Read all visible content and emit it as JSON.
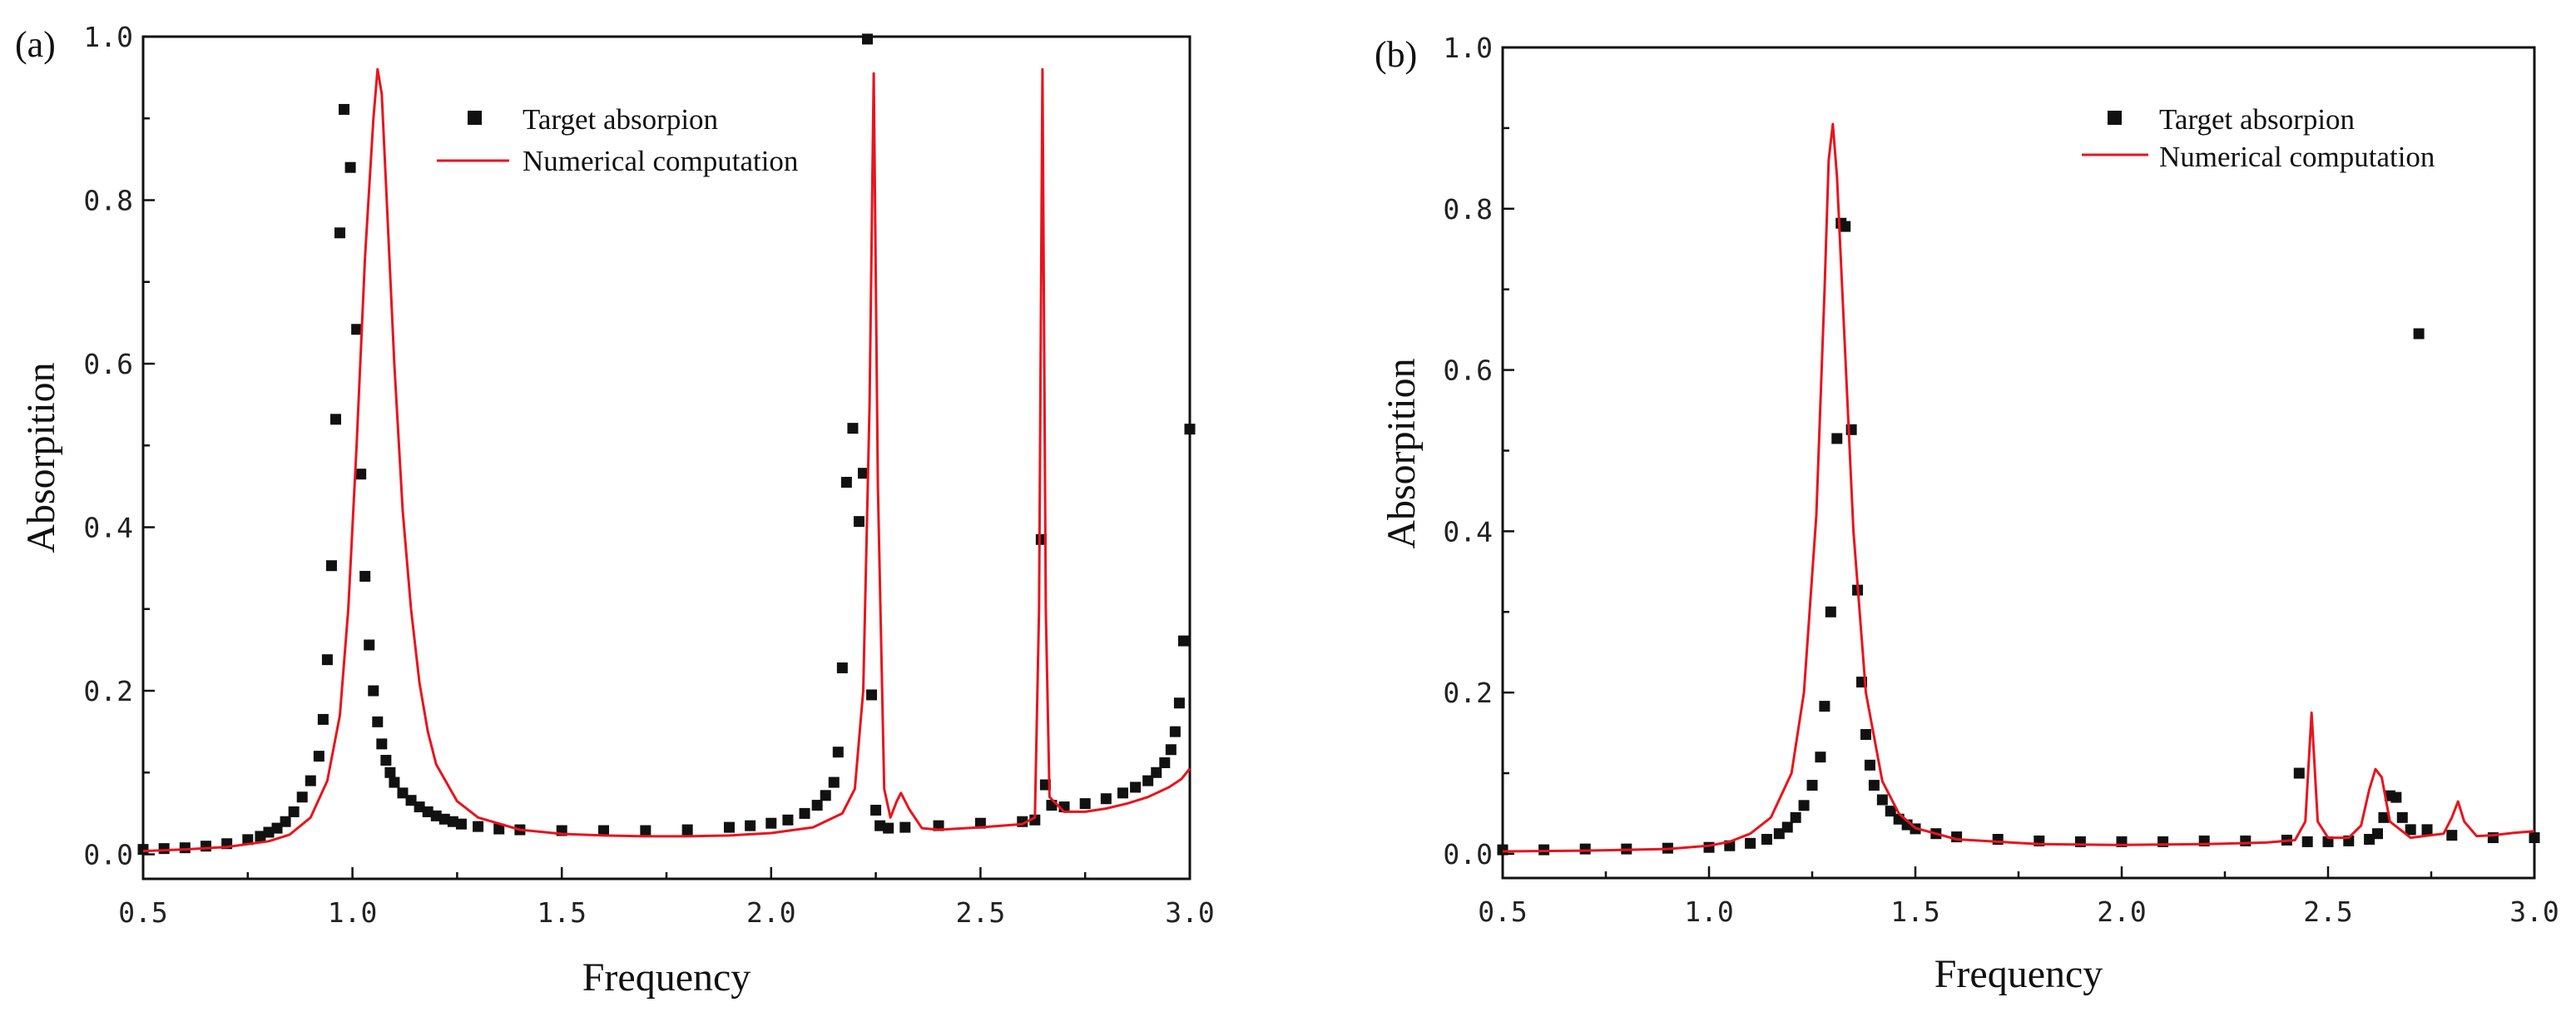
{
  "colors": {
    "target": "#111111",
    "numerical": "#e8141c",
    "axis": "#111111"
  },
  "chart_data": [
    {
      "type": "scatter+line",
      "panel_label": "(a)",
      "xlabel": "Frequency",
      "ylabel": "Absorpition",
      "xlim": [
        0.5,
        3.0
      ],
      "ylim": [
        -0.03,
        1.0
      ],
      "xticks": [
        0.5,
        1.0,
        1.5,
        2.0,
        2.5,
        3.0
      ],
      "xtick_labels": [
        "0.5",
        "1.0",
        "1.5",
        "2.0",
        "2.5",
        "3.0"
      ],
      "yticks": [
        0.0,
        0.2,
        0.4,
        0.6,
        0.8,
        1.0
      ],
      "ytick_labels": [
        "0.0",
        "0.2",
        "0.4",
        "0.6",
        "0.8",
        "1.0"
      ],
      "legend": {
        "position": "top-center",
        "entries": [
          "Target absorpion",
          "Numerical computation"
        ]
      },
      "series": [
        {
          "name": "Target absorpion",
          "style": "markers",
          "points": [
            [
              0.5,
              0.006
            ],
            [
              0.55,
              0.007
            ],
            [
              0.6,
              0.008
            ],
            [
              0.65,
              0.01
            ],
            [
              0.7,
              0.013
            ],
            [
              0.75,
              0.018
            ],
            [
              0.78,
              0.022
            ],
            [
              0.8,
              0.027
            ],
            [
              0.82,
              0.032
            ],
            [
              0.84,
              0.04
            ],
            [
              0.86,
              0.052
            ],
            [
              0.88,
              0.07
            ],
            [
              0.9,
              0.09
            ],
            [
              0.92,
              0.12
            ],
            [
              0.93,
              0.165
            ],
            [
              0.94,
              0.238
            ],
            [
              0.95,
              0.353
            ],
            [
              0.96,
              0.532
            ],
            [
              0.97,
              0.76
            ],
            [
              0.98,
              0.911
            ],
            [
              0.995,
              0.84
            ],
            [
              1.01,
              0.642
            ],
            [
              1.02,
              0.465
            ],
            [
              1.03,
              0.34
            ],
            [
              1.04,
              0.256
            ],
            [
              1.05,
              0.2
            ],
            [
              1.06,
              0.162
            ],
            [
              1.07,
              0.135
            ],
            [
              1.08,
              0.115
            ],
            [
              1.09,
              0.1
            ],
            [
              1.1,
              0.088
            ],
            [
              1.12,
              0.075
            ],
            [
              1.14,
              0.066
            ],
            [
              1.16,
              0.058
            ],
            [
              1.18,
              0.052
            ],
            [
              1.2,
              0.047
            ],
            [
              1.22,
              0.043
            ],
            [
              1.24,
              0.04
            ],
            [
              1.26,
              0.037
            ],
            [
              1.3,
              0.034
            ],
            [
              1.35,
              0.031
            ],
            [
              1.4,
              0.03
            ],
            [
              1.5,
              0.029
            ],
            [
              1.6,
              0.029
            ],
            [
              1.7,
              0.029
            ],
            [
              1.8,
              0.03
            ],
            [
              1.9,
              0.033
            ],
            [
              1.95,
              0.035
            ],
            [
              2.0,
              0.038
            ],
            [
              2.04,
              0.042
            ],
            [
              2.08,
              0.05
            ],
            [
              2.11,
              0.06
            ],
            [
              2.13,
              0.072
            ],
            [
              2.15,
              0.088
            ],
            [
              2.16,
              0.125
            ],
            [
              2.17,
              0.228
            ],
            [
              2.18,
              0.455
            ],
            [
              2.195,
              0.521
            ],
            [
              2.21,
              0.407
            ],
            [
              2.22,
              0.466
            ],
            [
              2.23,
              0.997
            ],
            [
              2.24,
              0.195
            ],
            [
              2.25,
              0.054
            ],
            [
              2.26,
              0.035
            ],
            [
              2.28,
              0.032
            ],
            [
              2.32,
              0.033
            ],
            [
              2.4,
              0.035
            ],
            [
              2.5,
              0.038
            ],
            [
              2.6,
              0.04
            ],
            [
              2.63,
              0.042
            ],
            [
              2.645,
              0.385
            ],
            [
              2.655,
              0.085
            ],
            [
              2.67,
              0.06
            ],
            [
              2.7,
              0.058
            ],
            [
              2.75,
              0.062
            ],
            [
              2.8,
              0.068
            ],
            [
              2.84,
              0.075
            ],
            [
              2.87,
              0.082
            ],
            [
              2.9,
              0.09
            ],
            [
              2.92,
              0.1
            ],
            [
              2.94,
              0.112
            ],
            [
              2.955,
              0.128
            ],
            [
              2.965,
              0.15
            ],
            [
              2.975,
              0.185
            ],
            [
              2.985,
              0.261
            ],
            [
              3.0,
              0.52
            ]
          ]
        },
        {
          "name": "Numerical computation",
          "style": "line",
          "points": [
            [
              0.5,
              0.004
            ],
            [
              0.6,
              0.006
            ],
            [
              0.7,
              0.009
            ],
            [
              0.8,
              0.016
            ],
            [
              0.85,
              0.024
            ],
            [
              0.9,
              0.045
            ],
            [
              0.94,
              0.09
            ],
            [
              0.97,
              0.17
            ],
            [
              0.99,
              0.3
            ],
            [
              1.01,
              0.5
            ],
            [
              1.03,
              0.73
            ],
            [
              1.05,
              0.9
            ],
            [
              1.06,
              0.96
            ],
            [
              1.07,
              0.93
            ],
            [
              1.08,
              0.82
            ],
            [
              1.1,
              0.6
            ],
            [
              1.12,
              0.42
            ],
            [
              1.14,
              0.3
            ],
            [
              1.16,
              0.21
            ],
            [
              1.18,
              0.15
            ],
            [
              1.2,
              0.11
            ],
            [
              1.25,
              0.065
            ],
            [
              1.3,
              0.045
            ],
            [
              1.4,
              0.03
            ],
            [
              1.5,
              0.025
            ],
            [
              1.6,
              0.023
            ],
            [
              1.7,
              0.022
            ],
            [
              1.8,
              0.022
            ],
            [
              1.9,
              0.023
            ],
            [
              2.0,
              0.026
            ],
            [
              2.1,
              0.033
            ],
            [
              2.17,
              0.05
            ],
            [
              2.2,
              0.08
            ],
            [
              2.22,
              0.2
            ],
            [
              2.235,
              0.55
            ],
            [
              2.245,
              0.955
            ],
            [
              2.255,
              0.45
            ],
            [
              2.27,
              0.08
            ],
            [
              2.285,
              0.045
            ],
            [
              2.3,
              0.065
            ],
            [
              2.31,
              0.075
            ],
            [
              2.33,
              0.055
            ],
            [
              2.36,
              0.032
            ],
            [
              2.4,
              0.03
            ],
            [
              2.5,
              0.033
            ],
            [
              2.6,
              0.037
            ],
            [
              2.63,
              0.045
            ],
            [
              2.64,
              0.3
            ],
            [
              2.648,
              0.96
            ],
            [
              2.656,
              0.3
            ],
            [
              2.665,
              0.07
            ],
            [
              2.7,
              0.052
            ],
            [
              2.75,
              0.052
            ],
            [
              2.8,
              0.056
            ],
            [
              2.85,
              0.062
            ],
            [
              2.9,
              0.07
            ],
            [
              2.95,
              0.082
            ],
            [
              2.98,
              0.092
            ],
            [
              3.0,
              0.105
            ]
          ]
        }
      ]
    },
    {
      "type": "scatter+line",
      "panel_label": "(b)",
      "xlabel": "Frequency",
      "ylabel": "Absorpition",
      "xlim": [
        0.5,
        3.0
      ],
      "ylim": [
        -0.03,
        1.0
      ],
      "xticks": [
        0.5,
        1.0,
        1.5,
        2.0,
        2.5,
        3.0
      ],
      "xtick_labels": [
        "0.5",
        "1.0",
        "1.5",
        "2.0",
        "2.5",
        "3.0"
      ],
      "yticks": [
        0.0,
        0.2,
        0.4,
        0.6,
        0.8,
        1.0
      ],
      "ytick_labels": [
        "0.0",
        "0.2",
        "0.4",
        "0.6",
        "0.8",
        "1.0"
      ],
      "legend": {
        "position": "top-right",
        "entries": [
          "Target absorpion",
          "Numerical computation"
        ]
      },
      "series": [
        {
          "name": "Target absorpion",
          "style": "markers",
          "points": [
            [
              0.5,
              0.005
            ],
            [
              0.6,
              0.005
            ],
            [
              0.7,
              0.006
            ],
            [
              0.8,
              0.006
            ],
            [
              0.9,
              0.007
            ],
            [
              1.0,
              0.008
            ],
            [
              1.05,
              0.01
            ],
            [
              1.1,
              0.013
            ],
            [
              1.14,
              0.018
            ],
            [
              1.17,
              0.025
            ],
            [
              1.19,
              0.033
            ],
            [
              1.21,
              0.045
            ],
            [
              1.23,
              0.06
            ],
            [
              1.25,
              0.085
            ],
            [
              1.27,
              0.12
            ],
            [
              1.28,
              0.183
            ],
            [
              1.295,
              0.3
            ],
            [
              1.31,
              0.515
            ],
            [
              1.32,
              0.782
            ],
            [
              1.33,
              0.778
            ],
            [
              1.345,
              0.526
            ],
            [
              1.36,
              0.327
            ],
            [
              1.37,
              0.213
            ],
            [
              1.38,
              0.148
            ],
            [
              1.39,
              0.11
            ],
            [
              1.4,
              0.085
            ],
            [
              1.42,
              0.067
            ],
            [
              1.44,
              0.053
            ],
            [
              1.46,
              0.043
            ],
            [
              1.48,
              0.036
            ],
            [
              1.5,
              0.031
            ],
            [
              1.55,
              0.025
            ],
            [
              1.6,
              0.021
            ],
            [
              1.7,
              0.018
            ],
            [
              1.8,
              0.016
            ],
            [
              1.9,
              0.015
            ],
            [
              2.0,
              0.015
            ],
            [
              2.1,
              0.015
            ],
            [
              2.2,
              0.016
            ],
            [
              2.3,
              0.016
            ],
            [
              2.4,
              0.017
            ],
            [
              2.43,
              0.1
            ],
            [
              2.45,
              0.015
            ],
            [
              2.5,
              0.015
            ],
            [
              2.55,
              0.016
            ],
            [
              2.6,
              0.018
            ],
            [
              2.62,
              0.025
            ],
            [
              2.635,
              0.045
            ],
            [
              2.65,
              0.072
            ],
            [
              2.665,
              0.07
            ],
            [
              2.68,
              0.045
            ],
            [
              2.7,
              0.03
            ],
            [
              2.72,
              0.645
            ],
            [
              2.74,
              0.03
            ],
            [
              2.8,
              0.023
            ],
            [
              2.9,
              0.02
            ],
            [
              3.0,
              0.02
            ]
          ]
        },
        {
          "name": "Numerical computation",
          "style": "line",
          "points": [
            [
              0.5,
              0.003
            ],
            [
              0.7,
              0.004
            ],
            [
              0.9,
              0.006
            ],
            [
              1.0,
              0.01
            ],
            [
              1.05,
              0.015
            ],
            [
              1.1,
              0.025
            ],
            [
              1.15,
              0.045
            ],
            [
              1.2,
              0.1
            ],
            [
              1.23,
              0.2
            ],
            [
              1.26,
              0.42
            ],
            [
              1.28,
              0.7
            ],
            [
              1.29,
              0.86
            ],
            [
              1.3,
              0.905
            ],
            [
              1.31,
              0.84
            ],
            [
              1.33,
              0.62
            ],
            [
              1.35,
              0.4
            ],
            [
              1.38,
              0.2
            ],
            [
              1.42,
              0.09
            ],
            [
              1.46,
              0.05
            ],
            [
              1.5,
              0.032
            ],
            [
              1.6,
              0.018
            ],
            [
              1.8,
              0.012
            ],
            [
              2.0,
              0.011
            ],
            [
              2.2,
              0.012
            ],
            [
              2.35,
              0.014
            ],
            [
              2.42,
              0.017
            ],
            [
              2.445,
              0.04
            ],
            [
              2.46,
              0.175
            ],
            [
              2.475,
              0.04
            ],
            [
              2.5,
              0.02
            ],
            [
              2.55,
              0.02
            ],
            [
              2.58,
              0.035
            ],
            [
              2.6,
              0.08
            ],
            [
              2.615,
              0.105
            ],
            [
              2.63,
              0.095
            ],
            [
              2.65,
              0.04
            ],
            [
              2.7,
              0.02
            ],
            [
              2.78,
              0.025
            ],
            [
              2.8,
              0.045
            ],
            [
              2.815,
              0.065
            ],
            [
              2.83,
              0.04
            ],
            [
              2.86,
              0.022
            ],
            [
              2.9,
              0.023
            ],
            [
              2.95,
              0.026
            ],
            [
              3.0,
              0.028
            ]
          ]
        }
      ]
    }
  ]
}
